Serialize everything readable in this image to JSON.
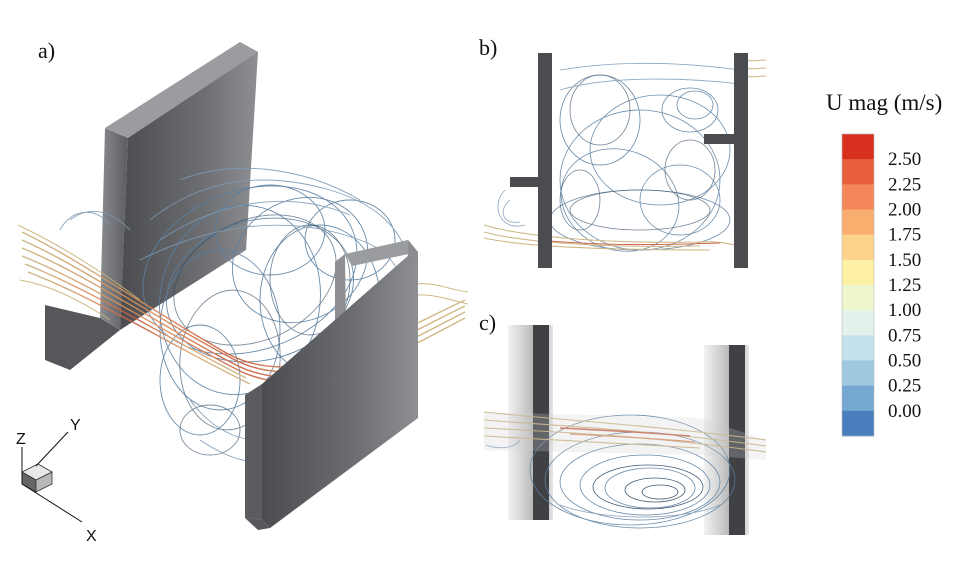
{
  "panels": {
    "a": {
      "label": "a)"
    },
    "b": {
      "label": "b)"
    },
    "c": {
      "label": "c)"
    }
  },
  "axes_triad": {
    "z": "Z",
    "y": "Y",
    "x": "X"
  },
  "legend": {
    "title": "U mag (m/s)",
    "ticks": [
      "2.50",
      "2.25",
      "2.00",
      "1.75",
      "1.50",
      "1.25",
      "1.00",
      "0.75",
      "0.50",
      "0.25",
      "0.00"
    ],
    "band_colors": [
      "#d7301f",
      "#e8603e",
      "#f4875a",
      "#f9ad6e",
      "#fdd38b",
      "#fef1a5",
      "#eef6cc",
      "#e3f2ea",
      "#c2e1ec",
      "#9ec7e0",
      "#74a8d2",
      "#4a7fbe"
    ]
  },
  "colors": {
    "baffle_dark": "#4a4c50",
    "baffle_mid": "#6c6e72",
    "baffle_light": "#9a9c9f",
    "streamline_blue": "#5a7fa0",
    "streamline_dark": "#2f4a63",
    "streamline_tan": "#c8b27a",
    "streamline_red": "#c85a3c"
  }
}
